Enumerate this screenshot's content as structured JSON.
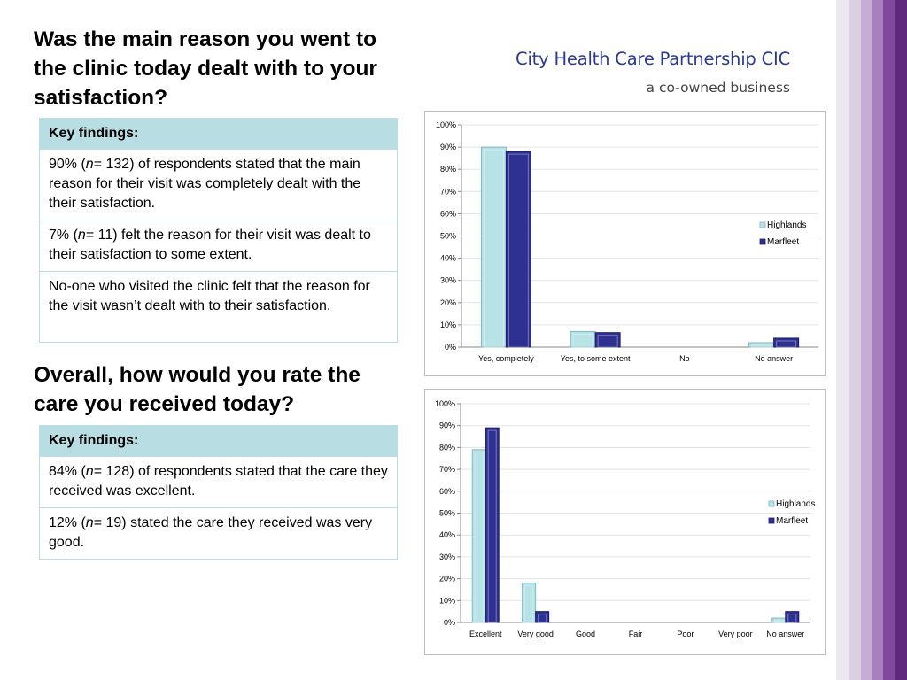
{
  "question1": "Was the main reason you went to the clinic today dealt with to your satisfaction?",
  "question2": "Overall, how would you rate the care you received today?",
  "brand": {
    "name": "City Health Care Partnership CIC",
    "tagline": "a co-owned business"
  },
  "findings1": {
    "header": "Key findings:",
    "items": [
      {
        "pre": "90% (",
        "n": "n",
        "post": "= 132) of respondents stated that the main reason for their visit was completely dealt with the their satisfaction."
      },
      {
        "pre": "7% (",
        "n": "n",
        "post": "= 11) felt the reason for their visit was dealt to their satisfaction to some extent."
      },
      {
        "pre": "No-one who visited the clinic felt that the reason for the visit wasn’t dealt with to their satisfaction.",
        "n": "",
        "post": ""
      }
    ]
  },
  "findings2": {
    "header": "Key findings:",
    "items": [
      {
        "pre": "84% (",
        "n": "n",
        "post": "= 128) of respondents stated that the care they received was excellent."
      },
      {
        "pre": "12% (",
        "n": "n",
        "post": "= 19) stated the care they received was very good."
      }
    ]
  },
  "colors": {
    "highlands": "#b7e2e6",
    "highlands_edge": "#7fb8c0",
    "marfleet": "#2e3192",
    "marfleet_edge": "#1a1c66",
    "stripes": [
      "#ece8ef",
      "#dbcfe2",
      "#c6add3",
      "#a880bd",
      "#7f4a9a",
      "#5e2a7e"
    ]
  },
  "chart_data": [
    {
      "type": "bar",
      "categories": [
        "Yes, completely",
        "Yes, to some extent",
        "No",
        "No answer"
      ],
      "series": [
        {
          "name": "Highlands",
          "values": [
            90,
            7,
            0,
            2
          ]
        },
        {
          "name": "Marfleet",
          "values": [
            88,
            6.5,
            0,
            4
          ]
        }
      ],
      "ylim": [
        0,
        100
      ],
      "yticks": [
        "0%",
        "10%",
        "20%",
        "30%",
        "40%",
        "50%",
        "60%",
        "70%",
        "80%",
        "90%",
        "100%"
      ],
      "grid": true,
      "legend": "right"
    },
    {
      "type": "bar",
      "categories": [
        "Excellent",
        "Very good",
        "Good",
        "Fair",
        "Poor",
        "Very poor",
        "No answer"
      ],
      "series": [
        {
          "name": "Highlands",
          "values": [
            79,
            18,
            0,
            0,
            0,
            0,
            2
          ]
        },
        {
          "name": "Marfleet",
          "values": [
            89,
            5,
            0,
            0,
            0,
            0,
            5
          ]
        }
      ],
      "ylim": [
        0,
        100
      ],
      "yticks": [
        "0%",
        "10%",
        "20%",
        "30%",
        "40%",
        "50%",
        "60%",
        "70%",
        "80%",
        "90%",
        "100%"
      ],
      "grid": true,
      "legend": "right"
    }
  ]
}
